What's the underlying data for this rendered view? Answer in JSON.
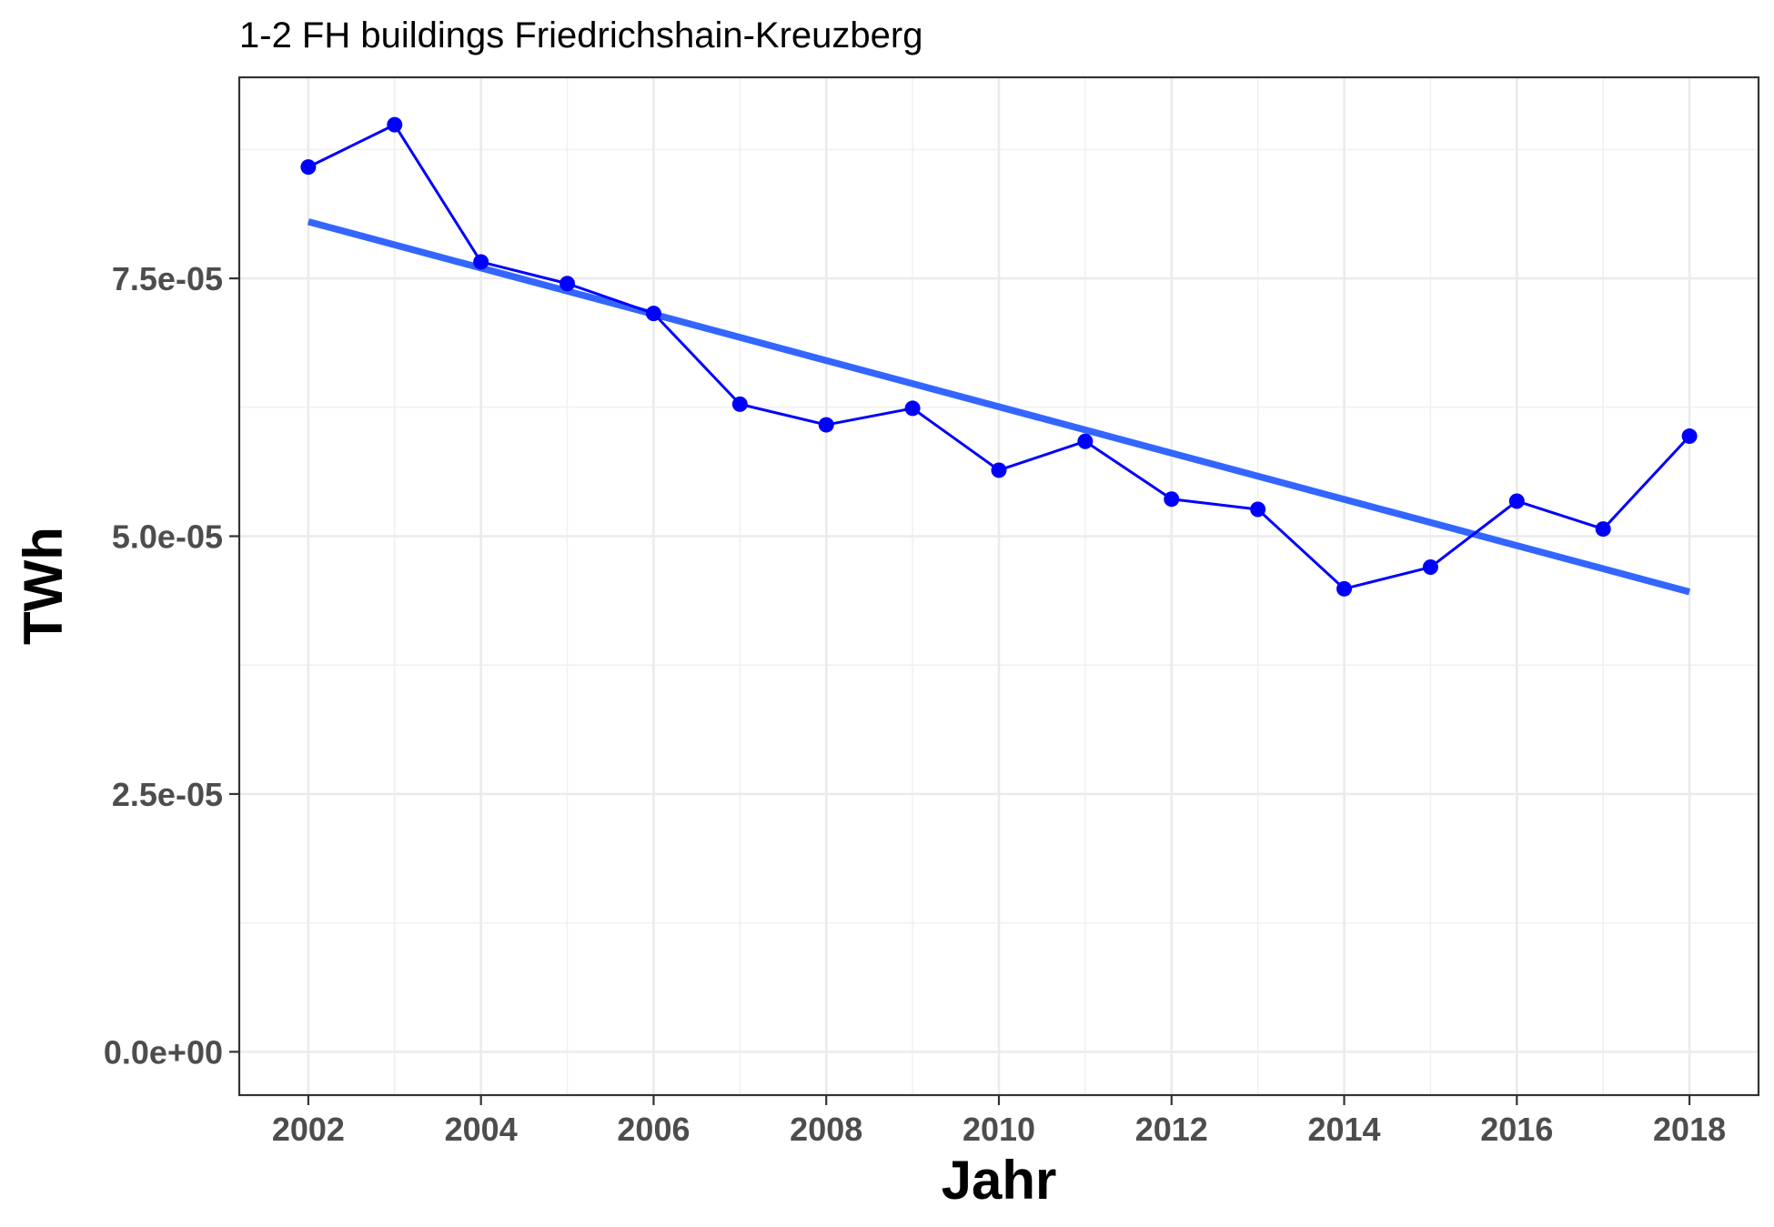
{
  "chart_data": {
    "type": "line",
    "title": "1-2 FH buildings Friedrichshain-Kreuzberg",
    "xlabel": "Jahr",
    "ylabel": "TWh",
    "xlim": [
      2001.2,
      2018.8
    ],
    "ylim": [
      -4.2e-06,
      9.45e-05
    ],
    "x_ticks": [
      2002,
      2004,
      2006,
      2008,
      2010,
      2012,
      2014,
      2016,
      2018
    ],
    "x_tick_labels": [
      "2002",
      "2004",
      "2006",
      "2008",
      "2010",
      "2012",
      "2014",
      "2016",
      "2018"
    ],
    "y_ticks": [
      0,
      2.5e-05,
      5e-05,
      7.5e-05
    ],
    "y_tick_labels": [
      "0.0e+00",
      "2.5e-05",
      "5.0e-05",
      "7.5e-05"
    ],
    "grid": true,
    "series": [
      {
        "kind": "line+points",
        "color": "#0000ff",
        "x": [
          2002,
          2003,
          2004,
          2005,
          2006,
          2007,
          2008,
          2009,
          2010,
          2011,
          2012,
          2013,
          2014,
          2015,
          2016,
          2017,
          2018
        ],
        "values": [
          8.58e-05,
          8.99e-05,
          7.66e-05,
          7.45e-05,
          7.16e-05,
          6.28e-05,
          6.08e-05,
          6.24e-05,
          5.64e-05,
          5.92e-05,
          5.36e-05,
          5.26e-05,
          4.49e-05,
          4.7e-05,
          5.34e-05,
          5.07e-05,
          5.97e-05
        ]
      },
      {
        "kind": "trend",
        "color": "#3366ff",
        "x": [
          2002,
          2018
        ],
        "values": [
          8.05e-05,
          4.46e-05
        ]
      }
    ]
  }
}
